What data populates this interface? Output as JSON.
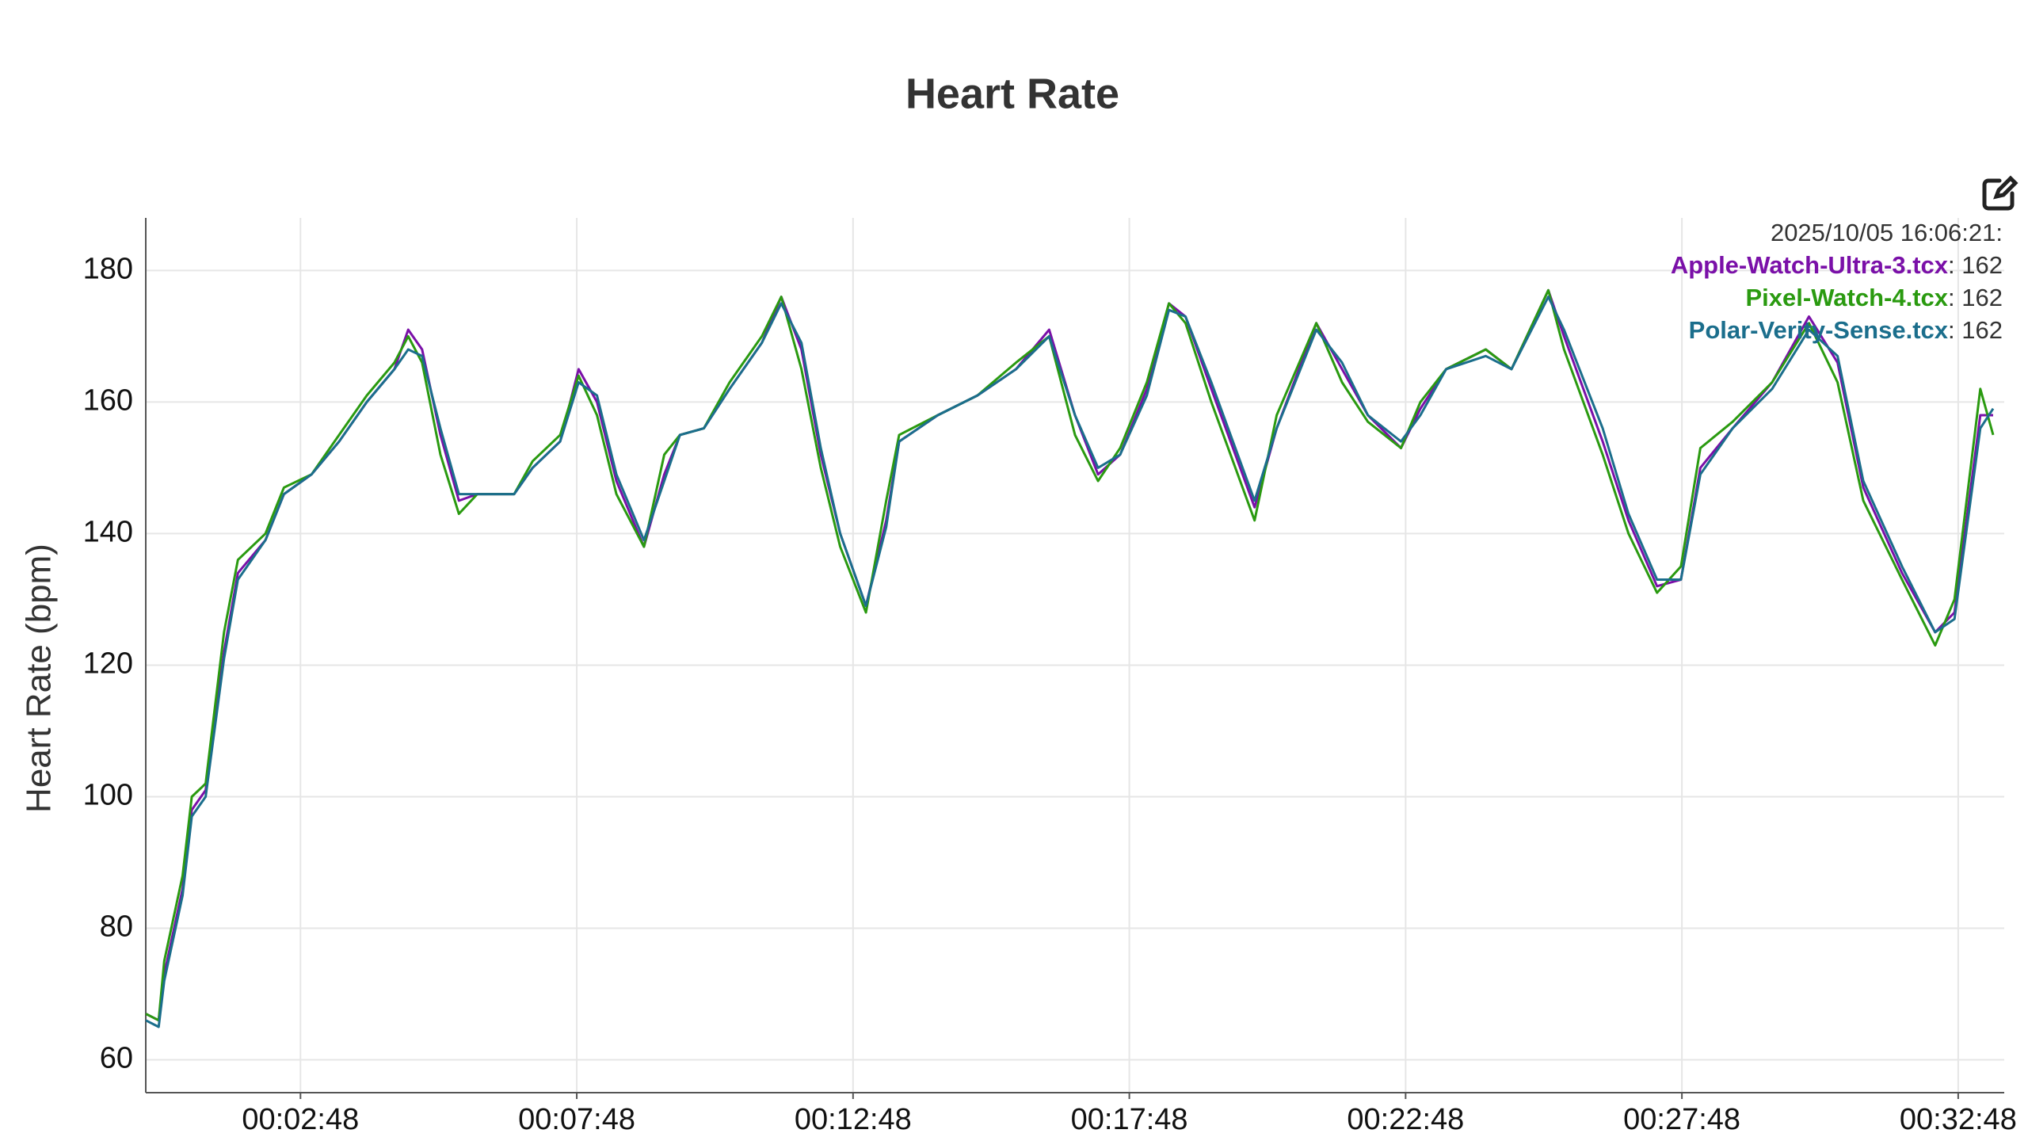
{
  "chart_data": {
    "type": "line",
    "title": "Heart Rate",
    "y_label": "Heart Rate (bpm)",
    "x": [
      0,
      14,
      20,
      40,
      50,
      65,
      85,
      100,
      130,
      150,
      180,
      210,
      240,
      270,
      285,
      300,
      320,
      340,
      360,
      400,
      420,
      450,
      470,
      490,
      511,
      541,
      563,
      580,
      606,
      634,
      669,
      690,
      712,
      733,
      754,
      782,
      804,
      818,
      860,
      903,
      945,
      981,
      1009,
      1034,
      1058,
      1087,
      1111,
      1129,
      1157,
      1204,
      1228,
      1271,
      1299,
      1327,
      1363,
      1384,
      1412,
      1455,
      1483,
      1523,
      1540,
      1582,
      1610,
      1641,
      1667,
      1688,
      1723,
      1766,
      1806,
      1837,
      1865,
      1907,
      1943,
      1964,
      1992,
      2006
    ],
    "series": [
      {
        "name": "Apple-Watch-Ultra-3.tcx",
        "color": "#7a10a8",
        "values": [
          67,
          66,
          73,
          86,
          98,
          101,
          122,
          134,
          139,
          146,
          149,
          154,
          160,
          165,
          171,
          168,
          155,
          145,
          146,
          146,
          150,
          154,
          165,
          160,
          148,
          138,
          149,
          155,
          156,
          162,
          169,
          176,
          168,
          152,
          140,
          129,
          142,
          154,
          158,
          161,
          165,
          171,
          158,
          149,
          152,
          162,
          175,
          173,
          162,
          144,
          156,
          172,
          165,
          158,
          153,
          159,
          165,
          168,
          165,
          177,
          170,
          154,
          142,
          132,
          133,
          150,
          156,
          163,
          173,
          166,
          147,
          134,
          125,
          128,
          158,
          158
        ]
      },
      {
        "name": "Pixel-Watch-4.tcx",
        "color": "#2a9a10",
        "values": [
          67,
          66,
          75,
          88,
          100,
          102,
          125,
          136,
          140,
          147,
          149,
          155,
          161,
          166,
          170,
          166,
          152,
          143,
          146,
          146,
          151,
          155,
          164,
          158,
          146,
          138,
          152,
          155,
          156,
          163,
          170,
          176,
          165,
          150,
          138,
          128,
          145,
          155,
          158,
          161,
          166,
          170,
          155,
          148,
          153,
          163,
          175,
          172,
          160,
          142,
          158,
          172,
          163,
          157,
          153,
          160,
          165,
          168,
          165,
          177,
          168,
          152,
          140,
          131,
          135,
          153,
          157,
          163,
          172,
          163,
          145,
          133,
          123,
          130,
          162,
          155
        ]
      },
      {
        "name": "Polar-Verity-Sense.tcx",
        "color": "#1b6e8c",
        "values": [
          66,
          65,
          72,
          85,
          97,
          100,
          121,
          133,
          139,
          146,
          149,
          154,
          160,
          165,
          168,
          167,
          156,
          146,
          146,
          146,
          150,
          154,
          163,
          161,
          149,
          139,
          148,
          155,
          156,
          162,
          169,
          175,
          169,
          153,
          140,
          129,
          141,
          154,
          158,
          161,
          165,
          170,
          158,
          150,
          152,
          161,
          174,
          173,
          163,
          145,
          156,
          171,
          166,
          158,
          154,
          158,
          165,
          167,
          165,
          176,
          171,
          156,
          143,
          133,
          133,
          149,
          156,
          162,
          171,
          167,
          148,
          135,
          125,
          127,
          156,
          159
        ]
      }
    ],
    "xlim": [
      0,
      2018
    ],
    "ylim": [
      55,
      188
    ],
    "xticks": [
      {
        "value": 168,
        "label": "00:02:48"
      },
      {
        "value": 468,
        "label": "00:07:48"
      },
      {
        "value": 768,
        "label": "00:12:48"
      },
      {
        "value": 1068,
        "label": "00:17:48"
      },
      {
        "value": 1368,
        "label": "00:22:48"
      },
      {
        "value": 1668,
        "label": "00:27:48"
      },
      {
        "value": 1968,
        "label": "00:32:48"
      }
    ],
    "yticks": [
      60,
      80,
      100,
      120,
      140,
      160,
      180
    ],
    "grid": true,
    "tooltip": {
      "time": "2025/10/05 16:06:21:",
      "separator": ": ",
      "values": [
        162,
        162,
        162
      ]
    }
  }
}
